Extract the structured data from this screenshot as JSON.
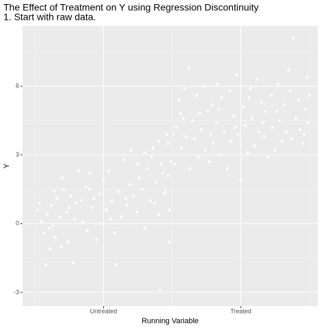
{
  "chart_data": {
    "type": "scatter",
    "title": "The Effect of Treatment on Y using Regression Discontinuity",
    "subtitle": "1. Start with raw data.",
    "x_label": "Running Variable",
    "y_label": "Y",
    "color": "#ffffff",
    "grid": true,
    "xlim": [
      -1.09,
      1.06
    ],
    "ylim": [
      -3.6,
      8.63
    ],
    "xticks": [
      {
        "value": -0.5,
        "label": "Untreated"
      },
      {
        "value": 0.5,
        "label": "Treated"
      }
    ],
    "yticks": [
      -3,
      0,
      3,
      6
    ],
    "x_minor_grid": [
      -1,
      0,
      1
    ],
    "y_minor_grid": [
      -1.5,
      1.5,
      4.5,
      7.5
    ],
    "x": [
      -0.98,
      -0.97,
      -0.95,
      -0.93,
      -0.92,
      -0.91,
      -0.9,
      -0.89,
      -0.88,
      -0.86,
      -0.85,
      -0.84,
      -0.82,
      -0.81,
      -0.8,
      -0.79,
      -0.77,
      -0.76,
      -0.74,
      -0.72,
      -0.71,
      -0.7,
      -0.68,
      -0.66,
      -0.65,
      -0.63,
      -0.62,
      -0.6,
      -0.58,
      -0.57,
      -0.55,
      -0.53,
      -0.52,
      -0.5,
      -0.48,
      -0.46,
      -0.44,
      -0.42,
      -0.41,
      -0.39,
      -0.37,
      -0.35,
      -0.33,
      -0.31,
      -0.3,
      -0.28,
      -0.26,
      -0.24,
      -0.22,
      -0.2,
      -0.18,
      -0.16,
      -0.14,
      -0.12,
      -0.1,
      -0.09,
      -0.08,
      -0.06,
      -0.04,
      -0.03,
      -0.02,
      -0.2,
      -0.15,
      -0.1,
      -0.07,
      -0.05,
      -0.03,
      -0.01,
      -0.02,
      -0.13,
      -0.25,
      -0.34,
      -0.45,
      -0.6,
      -0.75,
      -0.87,
      0.01,
      0.02,
      0.03,
      0.05,
      0.06,
      0.07,
      0.09,
      0.1,
      0.12,
      0.13,
      0.15,
      0.16,
      0.18,
      0.19,
      0.21,
      0.23,
      0.24,
      0.26,
      0.27,
      0.29,
      0.3,
      0.32,
      0.33,
      0.35,
      0.36,
      0.38,
      0.4,
      0.42,
      0.43,
      0.45,
      0.47,
      0.48,
      0.5,
      0.52,
      0.53,
      0.55,
      0.57,
      0.58,
      0.6,
      0.62,
      0.63,
      0.65,
      0.67,
      0.68,
      0.7,
      0.72,
      0.73,
      0.75,
      0.77,
      0.78,
      0.8,
      0.82,
      0.83,
      0.85,
      0.87,
      0.88,
      0.9,
      0.92,
      0.93,
      0.95,
      0.97,
      0.98,
      0.99,
      1.0,
      0.2,
      0.34,
      0.46,
      0.56,
      0.66,
      0.76,
      0.86,
      0.96,
      0.08,
      0.28
    ],
    "values": [
      0.6,
      0.9,
      0.1,
      -0.4,
      -1.8,
      0.4,
      -0.2,
      -1.1,
      0.8,
      1.4,
      -0.6,
      1.1,
      0.3,
      -1.0,
      2.0,
      1.5,
      0.5,
      -0.8,
      1.2,
      -1.7,
      0.2,
      0.9,
      2.3,
      1.0,
      0.1,
      1.6,
      -0.3,
      2.2,
      0.7,
      1.1,
      -0.7,
      1.3,
      0.0,
      1.9,
      0.6,
      2.3,
      1.0,
      -0.4,
      -1.8,
      1.4,
      0.3,
      2.8,
      0.8,
      1.7,
      3.2,
      1.2,
      0.5,
      2.0,
      1.5,
      -0.2,
      2.4,
      1.0,
      3.3,
      1.8,
      0.4,
      -2.9,
      2.6,
      1.3,
      3.9,
      2.1,
      0.6,
      3.1,
      2.9,
      3.6,
      2.2,
      1.4,
      3.5,
      2.7,
      -0.8,
      0.9,
      2.6,
      1.1,
      0.2,
      1.5,
      0.7,
      -0.1,
      3.9,
      2.6,
      4.2,
      5.4,
      4.8,
      3.3,
      5.9,
      3.8,
      6.8,
      2.4,
      4.5,
      3.7,
      5.6,
      2.9,
      4.1,
      6.0,
      3.2,
      4.9,
      2.7,
      5.2,
      3.5,
      4.4,
      6.1,
      3.0,
      5.5,
      4.0,
      2.4,
      5.8,
      3.6,
      4.7,
      6.5,
      3.9,
      1.9,
      5.1,
      4.3,
      3.1,
      5.9,
      4.6,
      3.4,
      6.3,
      4.0,
      5.3,
      3.8,
      4.9,
      2.9,
      5.6,
      4.2,
      3.2,
      6.1,
      4.5,
      3.6,
      5.2,
      4.0,
      6.7,
      3.7,
      8.1,
      4.6,
      5.4,
      4.1,
      3.5,
      5.0,
      6.4,
      4.4,
      5.6,
      4.8,
      5.0,
      4.2,
      5.5,
      4.4,
      4.9,
      5.8,
      3.9,
      4.6,
      3.9
    ]
  }
}
